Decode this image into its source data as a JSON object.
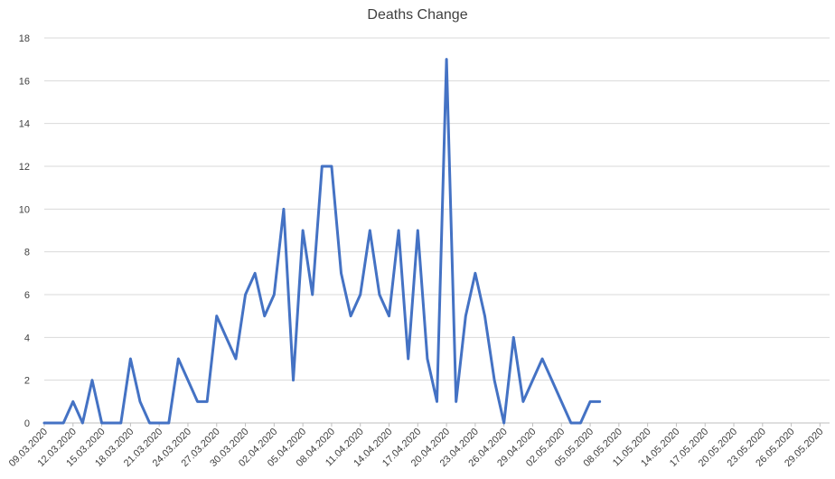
{
  "chart_data": {
    "type": "line",
    "title": "Deaths Change",
    "xlabel": "",
    "ylabel": "",
    "ylim": [
      0,
      18
    ],
    "y_ticks": [
      0,
      2,
      4,
      6,
      8,
      10,
      12,
      14,
      16,
      18
    ],
    "grid": "horizontal",
    "legend": "none",
    "x_tick_labels": [
      "09.03.2020",
      "12.03.2020",
      "15.03.2020",
      "18.03.2020",
      "21.03.2020",
      "24.03.2020",
      "27.03.2020",
      "30.03.2020",
      "02.04.2020",
      "05.04.2020",
      "08.04.2020",
      "11.04.2020",
      "14.04.2020",
      "17.04.2020",
      "20.04.2020",
      "23.04.2020",
      "26.04.2020",
      "29.04.2020",
      "02.05.2020",
      "05.05.2020",
      "08.05.2020",
      "11.05.2020",
      "14.05.2020",
      "17.05.2020",
      "20.05.2020",
      "23.05.2020",
      "26.05.2020",
      "29.05.2020"
    ],
    "x_range": [
      "09.03.2020",
      "30.05.2020"
    ],
    "series": [
      {
        "color": "#4472c4",
        "x": [
          "09.03.2020",
          "10.03.2020",
          "11.03.2020",
          "12.03.2020",
          "13.03.2020",
          "14.03.2020",
          "15.03.2020",
          "16.03.2020",
          "17.03.2020",
          "18.03.2020",
          "19.03.2020",
          "20.03.2020",
          "21.03.2020",
          "22.03.2020",
          "23.03.2020",
          "24.03.2020",
          "25.03.2020",
          "26.03.2020",
          "27.03.2020",
          "28.03.2020",
          "29.03.2020",
          "30.03.2020",
          "31.03.2020",
          "01.04.2020",
          "02.04.2020",
          "03.04.2020",
          "04.04.2020",
          "05.04.2020",
          "06.04.2020",
          "07.04.2020",
          "08.04.2020",
          "09.04.2020",
          "10.04.2020",
          "11.04.2020",
          "12.04.2020",
          "13.04.2020",
          "14.04.2020",
          "15.04.2020",
          "16.04.2020",
          "17.04.2020",
          "18.04.2020",
          "19.04.2020",
          "20.04.2020",
          "21.04.2020",
          "22.04.2020",
          "23.04.2020",
          "24.04.2020",
          "25.04.2020",
          "26.04.2020",
          "27.04.2020",
          "28.04.2020",
          "29.04.2020",
          "30.04.2020",
          "01.05.2020",
          "02.05.2020",
          "03.05.2020",
          "04.05.2020",
          "05.05.2020",
          "06.05.2020",
          "07.05.2020"
        ],
        "values": [
          0,
          0,
          0,
          1,
          0,
          2,
          0,
          0,
          0,
          3,
          1,
          0,
          0,
          0,
          3,
          2,
          1,
          1,
          5,
          4,
          3,
          6,
          7,
          5,
          6,
          10,
          2,
          9,
          6,
          12,
          12,
          7,
          5,
          6,
          9,
          6,
          5,
          9,
          3,
          9,
          3,
          1,
          17,
          1,
          5,
          7,
          5,
          2,
          0,
          4,
          1,
          2,
          3,
          2,
          1,
          0,
          0,
          1,
          1,
          null
        ]
      }
    ]
  }
}
